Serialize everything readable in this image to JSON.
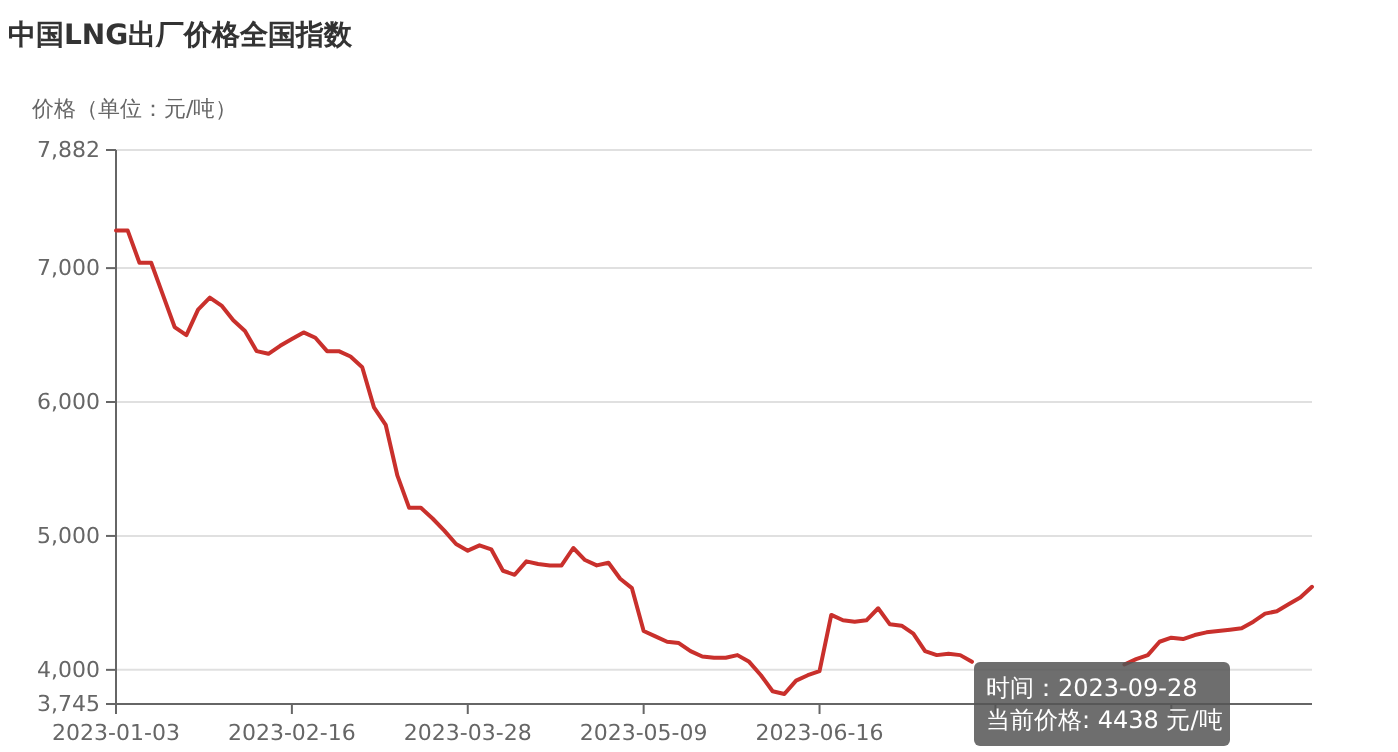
{
  "chart_data": {
    "type": "line",
    "title": "中国LNG出厂价格全国指数",
    "ylabel": "价格（单位：元/吨）",
    "categories": [
      "2023-01-03",
      null,
      null,
      null,
      null,
      null,
      null,
      null,
      null,
      null,
      null,
      null,
      null,
      null,
      null,
      "2023-02-16",
      null,
      null,
      null,
      null,
      null,
      null,
      null,
      null,
      null,
      null,
      null,
      null,
      null,
      null,
      "2023-03-28",
      null,
      null,
      null,
      null,
      null,
      null,
      null,
      null,
      null,
      null,
      null,
      null,
      null,
      null,
      "2023-05-09",
      null,
      null,
      null,
      null,
      null,
      null,
      null,
      null,
      null,
      null,
      null,
      null,
      null,
      null,
      "2023-06-16",
      null,
      null,
      null,
      null,
      null,
      null,
      null,
      null,
      null,
      null,
      null,
      null,
      null,
      null,
      null,
      null,
      null,
      null,
      null,
      null,
      null,
      null,
      null,
      null,
      null,
      null,
      null,
      null,
      null,
      null,
      null,
      null,
      null,
      null,
      null,
      null,
      null,
      null,
      null,
      null,
      null,
      null
    ],
    "series": [
      {
        "color": "#c9302c",
        "values": [
          7280,
          7280,
          7040,
          7040,
          6800,
          6560,
          6500,
          6690,
          6780,
          6720,
          6610,
          6530,
          6380,
          6360,
          6420,
          6470,
          6520,
          6480,
          6380,
          6380,
          6340,
          6260,
          5960,
          5830,
          5450,
          5210,
          5210,
          5130,
          5040,
          4940,
          4890,
          4930,
          4900,
          4740,
          4710,
          4810,
          4790,
          4780,
          4780,
          4910,
          4820,
          4780,
          4800,
          4680,
          4610,
          4290,
          4250,
          4210,
          4200,
          4140,
          4100,
          4090,
          4090,
          4110,
          4060,
          3960,
          3840,
          3820,
          3920,
          3960,
          3990,
          4410,
          4370,
          4360,
          4370,
          4460,
          4340,
          4330,
          4270,
          4140,
          4110,
          4120,
          4110,
          4060,
          null,
          null,
          null,
          null,
          null,
          null,
          null,
          null,
          null,
          null,
          null,
          null,
          4040,
          4080,
          4110,
          4210,
          4240,
          4230,
          4260,
          4280,
          4290,
          4300,
          4310,
          4360,
          4420,
          4438,
          4490,
          4540,
          4620
        ]
      }
    ],
    "ylim": [
      3745,
      7882
    ],
    "yticks": [
      {
        "value": 3745,
        "label": "3,745"
      },
      {
        "value": 4000,
        "label": "4,000"
      },
      {
        "value": 5000,
        "label": "5,000"
      },
      {
        "value": 6000,
        "label": "6,000"
      },
      {
        "value": 7000,
        "label": "7,000"
      },
      {
        "value": 7882,
        "label": "7,882"
      }
    ],
    "grid": "y",
    "line_style": "solid",
    "annotations": [
      "时间：2023-09-28",
      "当前价格: 4438 元/吨"
    ]
  }
}
